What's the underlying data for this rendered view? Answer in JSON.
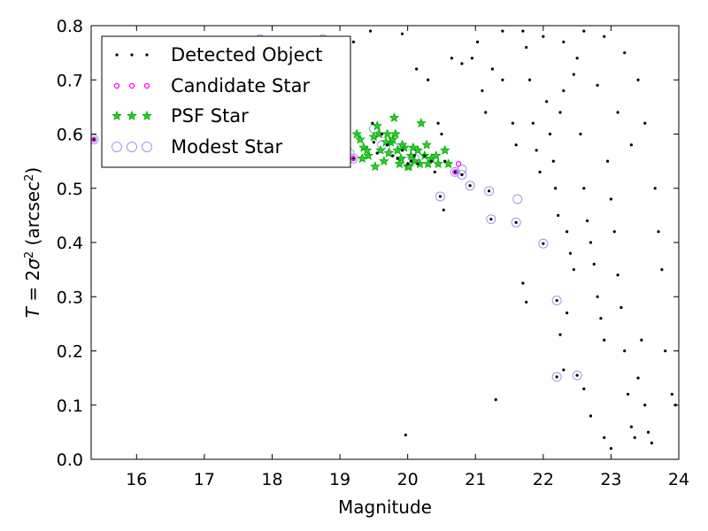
{
  "chart_data": {
    "type": "scatter",
    "title": "",
    "xlabel": "Magnitude",
    "ylabel_var": "T",
    "ylabel_eq": " = 2",
    "ylabel_sym": "σ",
    "ylabel_exp": "2",
    "ylabel_unit_open": " (arcsec",
    "ylabel_unit_exp": "2",
    "ylabel_unit_close": ")",
    "xlim": [
      15.33,
      24.0
    ],
    "ylim": [
      0.0,
      0.8
    ],
    "xticks": [
      16,
      17,
      18,
      19,
      20,
      21,
      22,
      23,
      24
    ],
    "xtick_labels": [
      "16",
      "17",
      "18",
      "19",
      "20",
      "21",
      "22",
      "23",
      "24"
    ],
    "yticks": [
      0.0,
      0.1,
      0.2,
      0.3,
      0.4,
      0.5,
      0.6,
      0.7,
      0.8
    ],
    "ytick_labels": [
      "0.0",
      "0.1",
      "0.2",
      "0.3",
      "0.4",
      "0.5",
      "0.6",
      "0.7",
      "0.8"
    ],
    "grid": false,
    "legend_position": "upper-left",
    "series": [
      {
        "name": "Detected Object",
        "marker": "dot",
        "color": "#000000",
        "points": [
          [
            15.37,
            0.59
          ],
          [
            17.82,
            0.775
          ],
          [
            18.75,
            0.775
          ],
          [
            19.14,
            0.565
          ],
          [
            19.2,
            0.555
          ],
          [
            19.48,
            0.62
          ],
          [
            19.5,
            0.585
          ],
          [
            19.55,
            0.565
          ],
          [
            19.62,
            0.6
          ],
          [
            19.7,
            0.58
          ],
          [
            19.78,
            0.56
          ],
          [
            19.85,
            0.555
          ],
          [
            19.92,
            0.57
          ],
          [
            20.0,
            0.545
          ],
          [
            20.05,
            0.55
          ],
          [
            20.1,
            0.56
          ],
          [
            20.15,
            0.545
          ],
          [
            20.25,
            0.56
          ],
          [
            20.35,
            0.55
          ],
          [
            20.4,
            0.53
          ],
          [
            20.48,
            0.485
          ],
          [
            20.55,
            0.55
          ],
          [
            20.7,
            0.53
          ],
          [
            20.8,
            0.525
          ],
          [
            20.92,
            0.505
          ],
          [
            21.2,
            0.495
          ],
          [
            21.23,
            0.443
          ],
          [
            21.6,
            0.437
          ],
          [
            22.0,
            0.398
          ],
          [
            22.2,
            0.293
          ],
          [
            22.2,
            0.152
          ],
          [
            22.5,
            0.155
          ],
          [
            21.3,
            0.11
          ],
          [
            19.97,
            0.045
          ],
          [
            21.7,
            0.325
          ],
          [
            21.75,
            0.29
          ],
          [
            22.3,
            0.165
          ],
          [
            22.25,
            0.23
          ],
          [
            22.35,
            0.27
          ],
          [
            19.0,
            0.72
          ],
          [
            19.2,
            0.77
          ],
          [
            18.98,
            0.7
          ],
          [
            19.45,
            0.79
          ],
          [
            19.92,
            0.785
          ],
          [
            20.13,
            0.72
          ],
          [
            20.3,
            0.7
          ],
          [
            20.45,
            0.62
          ],
          [
            20.5,
            0.6
          ],
          [
            20.53,
            0.46
          ],
          [
            20.65,
            0.74
          ],
          [
            20.8,
            0.73
          ],
          [
            20.95,
            0.74
          ],
          [
            21.03,
            0.77
          ],
          [
            21.1,
            0.68
          ],
          [
            21.15,
            0.64
          ],
          [
            21.25,
            0.72
          ],
          [
            21.4,
            0.7
          ],
          [
            21.55,
            0.62
          ],
          [
            21.6,
            0.58
          ],
          [
            21.75,
            0.76
          ],
          [
            21.8,
            0.7
          ],
          [
            21.85,
            0.62
          ],
          [
            21.9,
            0.57
          ],
          [
            21.95,
            0.53
          ],
          [
            22.05,
            0.66
          ],
          [
            22.1,
            0.6
          ],
          [
            22.15,
            0.55
          ],
          [
            22.18,
            0.5
          ],
          [
            22.22,
            0.45
          ],
          [
            22.3,
            0.68
          ],
          [
            22.35,
            0.42
          ],
          [
            22.4,
            0.38
          ],
          [
            22.45,
            0.35
          ],
          [
            22.5,
            0.74
          ],
          [
            22.55,
            0.6
          ],
          [
            22.6,
            0.5
          ],
          [
            22.65,
            0.44
          ],
          [
            22.7,
            0.4
          ],
          [
            22.75,
            0.36
          ],
          [
            22.8,
            0.3
          ],
          [
            22.85,
            0.26
          ],
          [
            22.9,
            0.22
          ],
          [
            22.95,
            0.55
          ],
          [
            23.0,
            0.48
          ],
          [
            23.05,
            0.42
          ],
          [
            23.1,
            0.34
          ],
          [
            23.15,
            0.28
          ],
          [
            23.2,
            0.2
          ],
          [
            23.25,
            0.12
          ],
          [
            23.3,
            0.06
          ],
          [
            23.35,
            0.04
          ],
          [
            23.4,
            0.15
          ],
          [
            23.45,
            0.22
          ],
          [
            23.5,
            0.1
          ],
          [
            23.55,
            0.05
          ],
          [
            23.6,
            0.03
          ],
          [
            23.65,
            0.5
          ],
          [
            23.7,
            0.42
          ],
          [
            23.75,
            0.35
          ],
          [
            23.8,
            0.2
          ],
          [
            23.9,
            0.12
          ],
          [
            23.95,
            0.1
          ],
          [
            22.6,
            0.13
          ],
          [
            22.7,
            0.08
          ],
          [
            22.9,
            0.04
          ],
          [
            23.0,
            0.02
          ],
          [
            21.4,
            0.79
          ],
          [
            21.7,
            0.79
          ],
          [
            22.0,
            0.78
          ],
          [
            22.3,
            0.77
          ],
          [
            22.6,
            0.79
          ],
          [
            22.9,
            0.78
          ],
          [
            23.2,
            0.75
          ],
          [
            23.4,
            0.7
          ],
          [
            23.5,
            0.62
          ],
          [
            23.3,
            0.58
          ],
          [
            23.1,
            0.64
          ],
          [
            22.8,
            0.69
          ],
          [
            22.45,
            0.71
          ],
          [
            22.25,
            0.64
          ]
        ]
      },
      {
        "name": "Candidate Star",
        "marker": "ring-small",
        "color": "#ff00ff",
        "points": [
          [
            15.37,
            0.59
          ],
          [
            19.2,
            0.555
          ],
          [
            20.7,
            0.53
          ],
          [
            20.75,
            0.545
          ]
        ]
      },
      {
        "name": "PSF Star",
        "marker": "star",
        "color": "#00aa00",
        "points": [
          [
            19.25,
            0.6
          ],
          [
            19.3,
            0.59
          ],
          [
            19.35,
            0.575
          ],
          [
            19.42,
            0.56
          ],
          [
            19.5,
            0.595
          ],
          [
            19.55,
            0.615
          ],
          [
            19.6,
            0.57
          ],
          [
            19.65,
            0.55
          ],
          [
            19.7,
            0.6
          ],
          [
            19.75,
            0.585
          ],
          [
            19.8,
            0.63
          ],
          [
            19.85,
            0.57
          ],
          [
            19.9,
            0.555
          ],
          [
            19.95,
            0.575
          ],
          [
            20.0,
            0.54
          ],
          [
            20.05,
            0.56
          ],
          [
            20.1,
            0.55
          ],
          [
            20.15,
            0.57
          ],
          [
            20.2,
            0.62
          ],
          [
            20.25,
            0.56
          ],
          [
            20.3,
            0.545
          ],
          [
            20.35,
            0.555
          ],
          [
            20.45,
            0.545
          ],
          [
            20.55,
            0.57
          ],
          [
            19.52,
            0.54
          ],
          [
            19.68,
            0.585
          ],
          [
            19.78,
            0.59
          ],
          [
            19.88,
            0.545
          ],
          [
            20.02,
            0.54
          ],
          [
            19.33,
            0.555
          ],
          [
            19.4,
            0.57
          ],
          [
            19.58,
            0.6
          ],
          [
            19.72,
            0.565
          ],
          [
            19.82,
            0.6
          ],
          [
            19.92,
            0.58
          ],
          [
            20.08,
            0.575
          ],
          [
            20.18,
            0.545
          ],
          [
            20.28,
            0.58
          ],
          [
            20.42,
            0.56
          ],
          [
            20.6,
            0.545
          ]
        ]
      },
      {
        "name": "Modest Star",
        "marker": "ring-large",
        "color": "#9999ee",
        "points": [
          [
            15.37,
            0.59
          ],
          [
            17.82,
            0.775
          ],
          [
            18.75,
            0.775
          ],
          [
            19.14,
            0.565
          ],
          [
            19.2,
            0.555
          ],
          [
            19.5,
            0.61
          ],
          [
            19.62,
            0.58
          ],
          [
            19.8,
            0.575
          ],
          [
            20.0,
            0.55
          ],
          [
            20.1,
            0.555
          ],
          [
            20.48,
            0.485
          ],
          [
            20.7,
            0.53
          ],
          [
            20.8,
            0.535
          ],
          [
            20.8,
            0.525
          ],
          [
            20.92,
            0.505
          ],
          [
            21.2,
            0.495
          ],
          [
            21.23,
            0.443
          ],
          [
            21.6,
            0.437
          ],
          [
            21.62,
            0.48
          ],
          [
            22.0,
            0.398
          ],
          [
            22.2,
            0.293
          ],
          [
            22.2,
            0.152
          ],
          [
            22.5,
            0.155
          ]
        ]
      }
    ]
  }
}
